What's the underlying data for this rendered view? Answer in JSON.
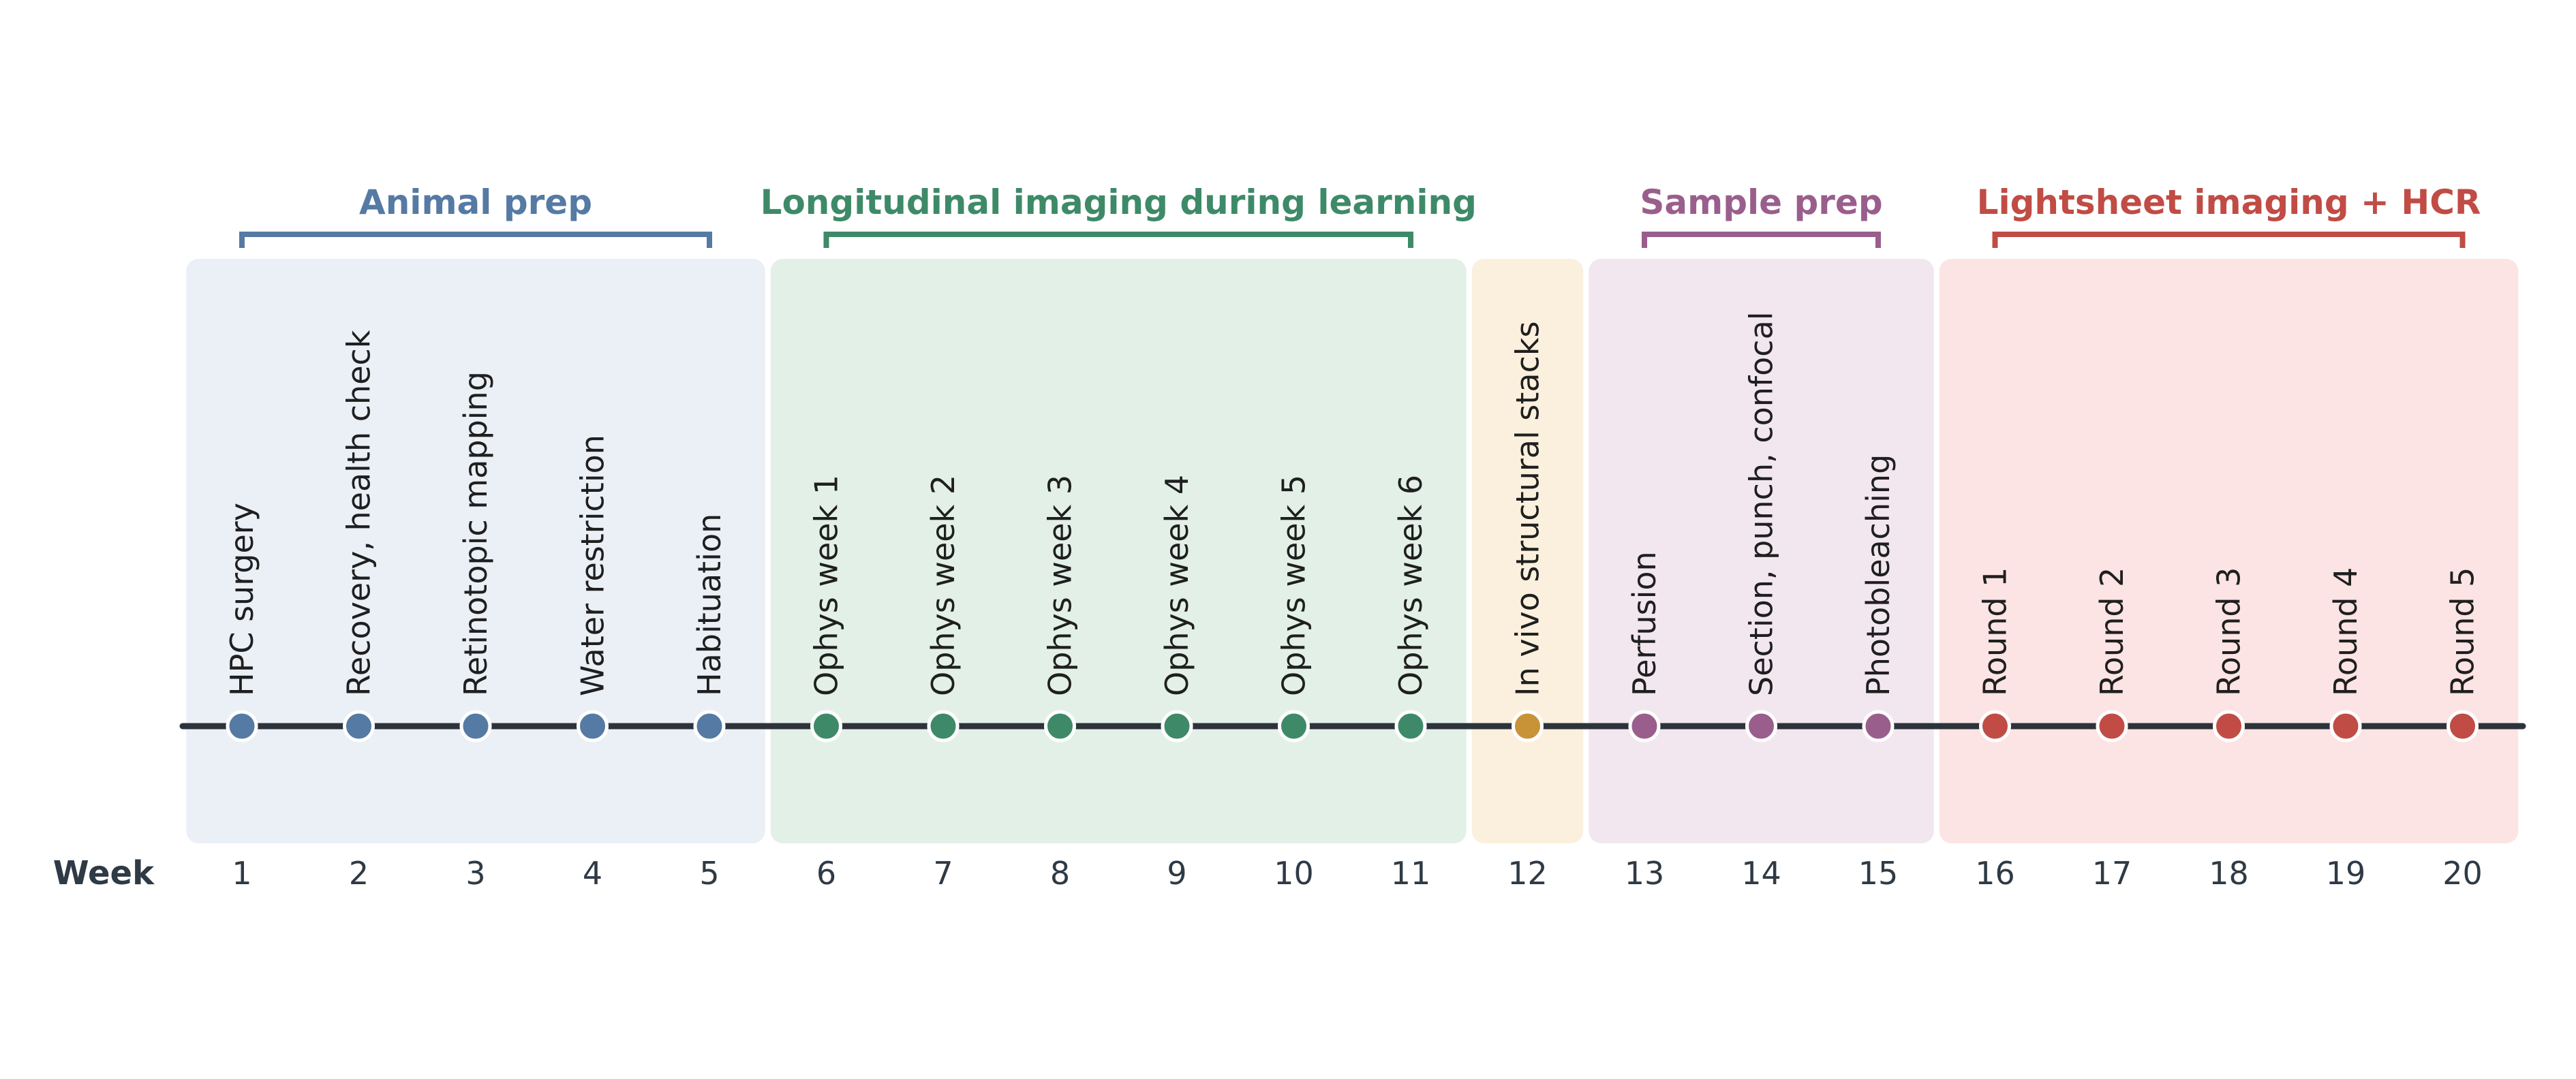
{
  "timeline": {
    "axis_title": "Week",
    "axis_color": "#2d333b",
    "weeks": [
      "1",
      "2",
      "3",
      "4",
      "5",
      "6",
      "7",
      "8",
      "9",
      "10",
      "11",
      "12",
      "13",
      "14",
      "15",
      "16",
      "17",
      "18",
      "19",
      "20"
    ],
    "phases": [
      {
        "title": "Animal prep",
        "color": "#557aa3",
        "band": "#ebeff6",
        "start": 1,
        "end": 5,
        "bracket": true
      },
      {
        "title": "Longitudinal imaging during learning",
        "color": "#3e8a68",
        "band": "#e3f0e8",
        "start": 6,
        "end": 11,
        "bracket": true
      },
      {
        "title": "",
        "color": "#c89236",
        "band": "#fbf0dd",
        "start": 12,
        "end": 12,
        "bracket": false
      },
      {
        "title": "Sample prep",
        "color": "#9a5e8c",
        "band": "#f2e7ef",
        "start": 13,
        "end": 15,
        "bracket": true
      },
      {
        "title": "Lightsheet imaging + HCR",
        "color": "#c04c45",
        "band": "#fbe4e3",
        "start": 16,
        "end": 20,
        "bracket": true
      }
    ],
    "events": [
      {
        "week": 1,
        "label": "HPC surgery",
        "phase": 0
      },
      {
        "week": 2,
        "label": "Recovery, health check",
        "phase": 0
      },
      {
        "week": 3,
        "label": "Retinotopic mapping",
        "phase": 0
      },
      {
        "week": 4,
        "label": "Water restriction",
        "phase": 0
      },
      {
        "week": 5,
        "label": "Habituation",
        "phase": 0
      },
      {
        "week": 6,
        "label": "Ophys week 1",
        "phase": 1
      },
      {
        "week": 7,
        "label": "Ophys week 2",
        "phase": 1
      },
      {
        "week": 8,
        "label": "Ophys week 3",
        "phase": 1
      },
      {
        "week": 9,
        "label": "Ophys week 4",
        "phase": 1
      },
      {
        "week": 10,
        "label": "Ophys week 5",
        "phase": 1
      },
      {
        "week": 11,
        "label": "Ophys week 6",
        "phase": 1
      },
      {
        "week": 12,
        "label": "In vivo structural stacks",
        "phase": 2
      },
      {
        "week": 13,
        "label": "Perfusion",
        "phase": 3
      },
      {
        "week": 14,
        "label": "Section, punch, confocal",
        "phase": 3
      },
      {
        "week": 15,
        "label": "Photobleaching",
        "phase": 3
      },
      {
        "week": 16,
        "label": "Round 1",
        "phase": 4
      },
      {
        "week": 17,
        "label": "Round 2",
        "phase": 4
      },
      {
        "week": 18,
        "label": "Round 3",
        "phase": 4
      },
      {
        "week": 19,
        "label": "Round 4",
        "phase": 4
      },
      {
        "week": 20,
        "label": "Round 5",
        "phase": 4
      }
    ]
  }
}
